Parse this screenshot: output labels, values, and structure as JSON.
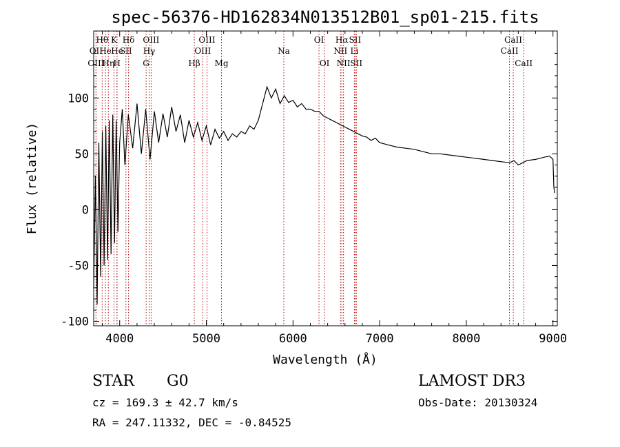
{
  "chart_data": {
    "type": "line",
    "title": "spec-56376-HD162834N013512B01_sp01-215.fits",
    "xlabel": "Wavelength (Å)",
    "ylabel": "Flux (relative)",
    "xlim": [
      3700,
      9050
    ],
    "ylim": [
      -104,
      160
    ],
    "xticks": [
      4000,
      5000,
      6000,
      7000,
      8000,
      9000
    ],
    "yticks": [
      -100,
      -50,
      0,
      50,
      100
    ],
    "series": [
      {
        "name": "flux",
        "x": [
          3700,
          3720,
          3740,
          3760,
          3780,
          3800,
          3820,
          3840,
          3860,
          3880,
          3900,
          3920,
          3940,
          3960,
          3980,
          4000,
          4030,
          4060,
          4100,
          4150,
          4200,
          4250,
          4300,
          4350,
          4400,
          4450,
          4500,
          4550,
          4600,
          4650,
          4700,
          4750,
          4800,
          4850,
          4900,
          4950,
          5000,
          5050,
          5100,
          5150,
          5200,
          5250,
          5300,
          5350,
          5400,
          5450,
          5500,
          5550,
          5600,
          5650,
          5700,
          5750,
          5800,
          5850,
          5900,
          5950,
          6000,
          6050,
          6100,
          6150,
          6200,
          6250,
          6300,
          6350,
          6400,
          6450,
          6500,
          6550,
          6600,
          6650,
          6700,
          6750,
          6800,
          6850,
          6900,
          6950,
          7000,
          7100,
          7200,
          7300,
          7400,
          7500,
          7600,
          7700,
          7800,
          7900,
          8000,
          8100,
          8200,
          8300,
          8400,
          8500,
          8550,
          8600,
          8650,
          8700,
          8800,
          8900,
          8960,
          9000,
          9010,
          9020
        ],
        "y": [
          -70,
          30,
          -85,
          60,
          -60,
          70,
          -50,
          75,
          -45,
          80,
          -40,
          85,
          -30,
          80,
          -20,
          60,
          90,
          40,
          85,
          55,
          95,
          50,
          90,
          45,
          88,
          60,
          86,
          65,
          92,
          70,
          85,
          60,
          80,
          65,
          78,
          62,
          75,
          58,
          72,
          64,
          70,
          62,
          68,
          65,
          70,
          68,
          75,
          72,
          80,
          95,
          110,
          100,
          108,
          95,
          102,
          96,
          98,
          92,
          95,
          90,
          90,
          88,
          88,
          84,
          82,
          80,
          78,
          76,
          74,
          72,
          70,
          68,
          66,
          65,
          62,
          64,
          60,
          58,
          56,
          55,
          54,
          52,
          50,
          50,
          49,
          48,
          47,
          46,
          45,
          44,
          43,
          42,
          44,
          40,
          42,
          44,
          45,
          47,
          48,
          45,
          20,
          15
        ]
      }
    ],
    "lines": [
      {
        "label": "OII",
        "x": 3727,
        "row": 2
      },
      {
        "label": "OIII",
        "x": 3727,
        "row": 3
      },
      {
        "label": "Hθ",
        "x": 3798,
        "row": 1
      },
      {
        "label": "He",
        "x": 3835,
        "row": 2
      },
      {
        "label": "Hη",
        "x": 3869,
        "row": 3
      },
      {
        "label": "K",
        "x": 3934,
        "row": 1
      },
      {
        "label": "He",
        "x": 3970,
        "row": 2
      },
      {
        "label": "H",
        "x": 3968,
        "row": 3
      },
      {
        "label": "Hδ",
        "x": 4102,
        "row": 1
      },
      {
        "label": "SII",
        "x": 4072,
        "row": 2
      },
      {
        "label": "OIII",
        "x": 4363,
        "row": 1
      },
      {
        "label": "Hγ",
        "x": 4340,
        "row": 2
      },
      {
        "label": "G",
        "x": 4305,
        "row": 3
      },
      {
        "label": "Hβ",
        "x": 4861,
        "row": 3
      },
      {
        "label": "OIII",
        "x": 5007,
        "row": 1
      },
      {
        "label": "OIII",
        "x": 4959,
        "row": 2
      },
      {
        "label": "Mg",
        "x": 5175,
        "row": 3
      },
      {
        "label": "Na",
        "x": 5894,
        "row": 2
      },
      {
        "label": "OI",
        "x": 6300,
        "row": 1
      },
      {
        "label": "OI",
        "x": 6364,
        "row": 3
      },
      {
        "label": "Hα",
        "x": 6563,
        "row": 1
      },
      {
        "label": "SII",
        "x": 6716,
        "row": 1
      },
      {
        "label": "NII",
        "x": 6548,
        "row": 2
      },
      {
        "label": "Li",
        "x": 6708,
        "row": 2
      },
      {
        "label": "NII",
        "x": 6583,
        "row": 3
      },
      {
        "label": "SII",
        "x": 6731,
        "row": 3
      },
      {
        "label": "CaII",
        "x": 8542,
        "row": 1
      },
      {
        "label": "CaII",
        "x": 8498,
        "row": 2
      },
      {
        "label": "CaII",
        "x": 8662,
        "row": 3
      }
    ]
  },
  "info": {
    "star_label": "STAR",
    "spectral_type": "G0",
    "survey": "LAMOST DR3",
    "cz": "cz = 169.3 ± 42.7 km/s",
    "obs_date": "Obs-Date: 20130324",
    "coords": "RA = 247.11332, DEC =  -0.84525"
  },
  "colors": {
    "spectrum": "#000000",
    "line_markers": "#b30000",
    "axes": "#000000",
    "background": "#ffffff"
  }
}
